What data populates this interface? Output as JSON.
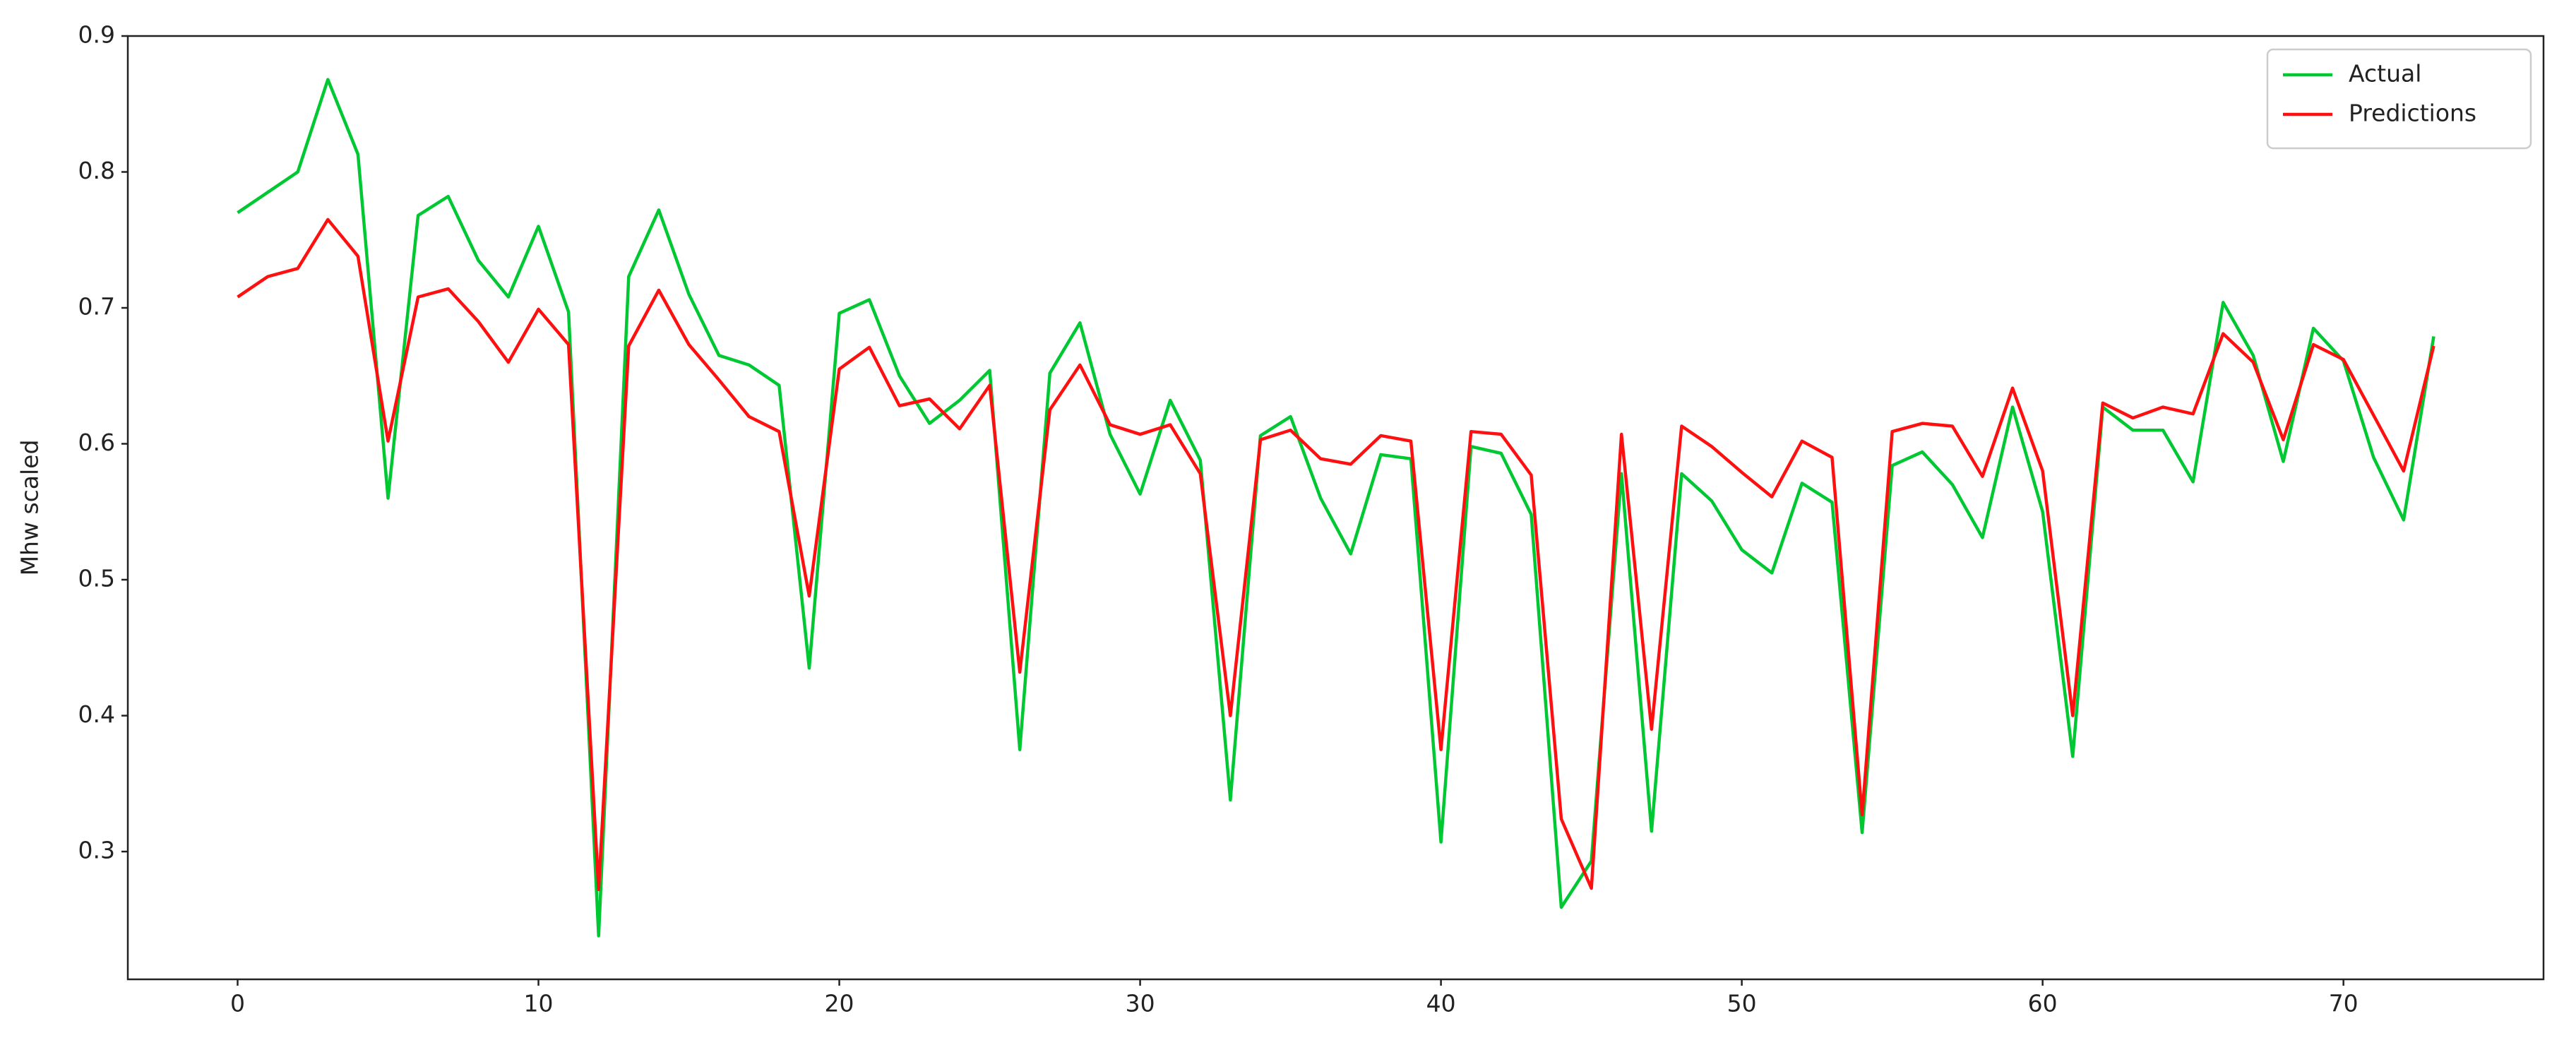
{
  "chart_data": {
    "type": "line",
    "ylabel": "Mhw scaled",
    "x": [
      0,
      1,
      2,
      3,
      4,
      5,
      6,
      7,
      8,
      9,
      10,
      11,
      12,
      13,
      14,
      15,
      16,
      17,
      18,
      19,
      20,
      21,
      22,
      23,
      24,
      25,
      26,
      27,
      28,
      29,
      30,
      31,
      32,
      33,
      34,
      35,
      36,
      37,
      38,
      39,
      40,
      41,
      42,
      43,
      44,
      45,
      46,
      47,
      48,
      49,
      50,
      51,
      52,
      53,
      54,
      55,
      56,
      57,
      58,
      59,
      60,
      61,
      62,
      63,
      64,
      65,
      66,
      67,
      68,
      69,
      70,
      71,
      72,
      73
    ],
    "series": [
      {
        "name": "Actual",
        "color": "#00c832",
        "values": [
          0.77,
          0.785,
          0.8,
          0.868,
          0.813,
          0.56,
          0.768,
          0.782,
          0.735,
          0.708,
          0.76,
          0.697,
          0.238,
          0.723,
          0.772,
          0.71,
          0.665,
          0.658,
          0.643,
          0.435,
          0.696,
          0.706,
          0.65,
          0.615,
          0.632,
          0.654,
          0.375,
          0.652,
          0.689,
          0.607,
          0.563,
          0.632,
          0.588,
          0.338,
          0.606,
          0.62,
          0.56,
          0.519,
          0.592,
          0.589,
          0.307,
          0.598,
          0.593,
          0.548,
          0.259,
          0.293,
          0.578,
          0.315,
          0.578,
          0.558,
          0.522,
          0.505,
          0.571,
          0.557,
          0.314,
          0.584,
          0.594,
          0.57,
          0.531,
          0.627,
          0.55,
          0.37,
          0.627,
          0.61,
          0.61,
          0.572,
          0.704,
          0.665,
          0.587,
          0.685,
          0.661,
          0.59,
          0.544,
          0.679
        ]
      },
      {
        "name": "Predictions",
        "color": "#ff1010",
        "values": [
          0.708,
          0.723,
          0.729,
          0.765,
          0.738,
          0.602,
          0.708,
          0.714,
          0.69,
          0.66,
          0.699,
          0.673,
          0.272,
          0.672,
          0.713,
          0.673,
          0.647,
          0.62,
          0.609,
          0.488,
          0.655,
          0.671,
          0.628,
          0.633,
          0.611,
          0.643,
          0.432,
          0.625,
          0.658,
          0.614,
          0.607,
          0.614,
          0.578,
          0.4,
          0.603,
          0.61,
          0.589,
          0.585,
          0.606,
          0.602,
          0.375,
          0.609,
          0.607,
          0.577,
          0.324,
          0.273,
          0.607,
          0.39,
          0.613,
          0.598,
          0.579,
          0.561,
          0.602,
          0.59,
          0.327,
          0.609,
          0.615,
          0.613,
          0.576,
          0.641,
          0.58,
          0.4,
          0.63,
          0.619,
          0.627,
          0.622,
          0.681,
          0.66,
          0.603,
          0.673,
          0.662,
          0.621,
          0.58,
          0.672
        ]
      }
    ],
    "xlim": [
      -3.65,
      76.65
    ],
    "xticks": [
      0,
      10,
      20,
      30,
      40,
      50,
      60,
      70
    ],
    "ylim": [
      0.206,
      0.9
    ],
    "yticks": [
      0.3,
      0.4,
      0.5,
      0.6,
      0.7,
      0.8,
      0.9
    ],
    "grid": false,
    "legend": "upper right"
  }
}
